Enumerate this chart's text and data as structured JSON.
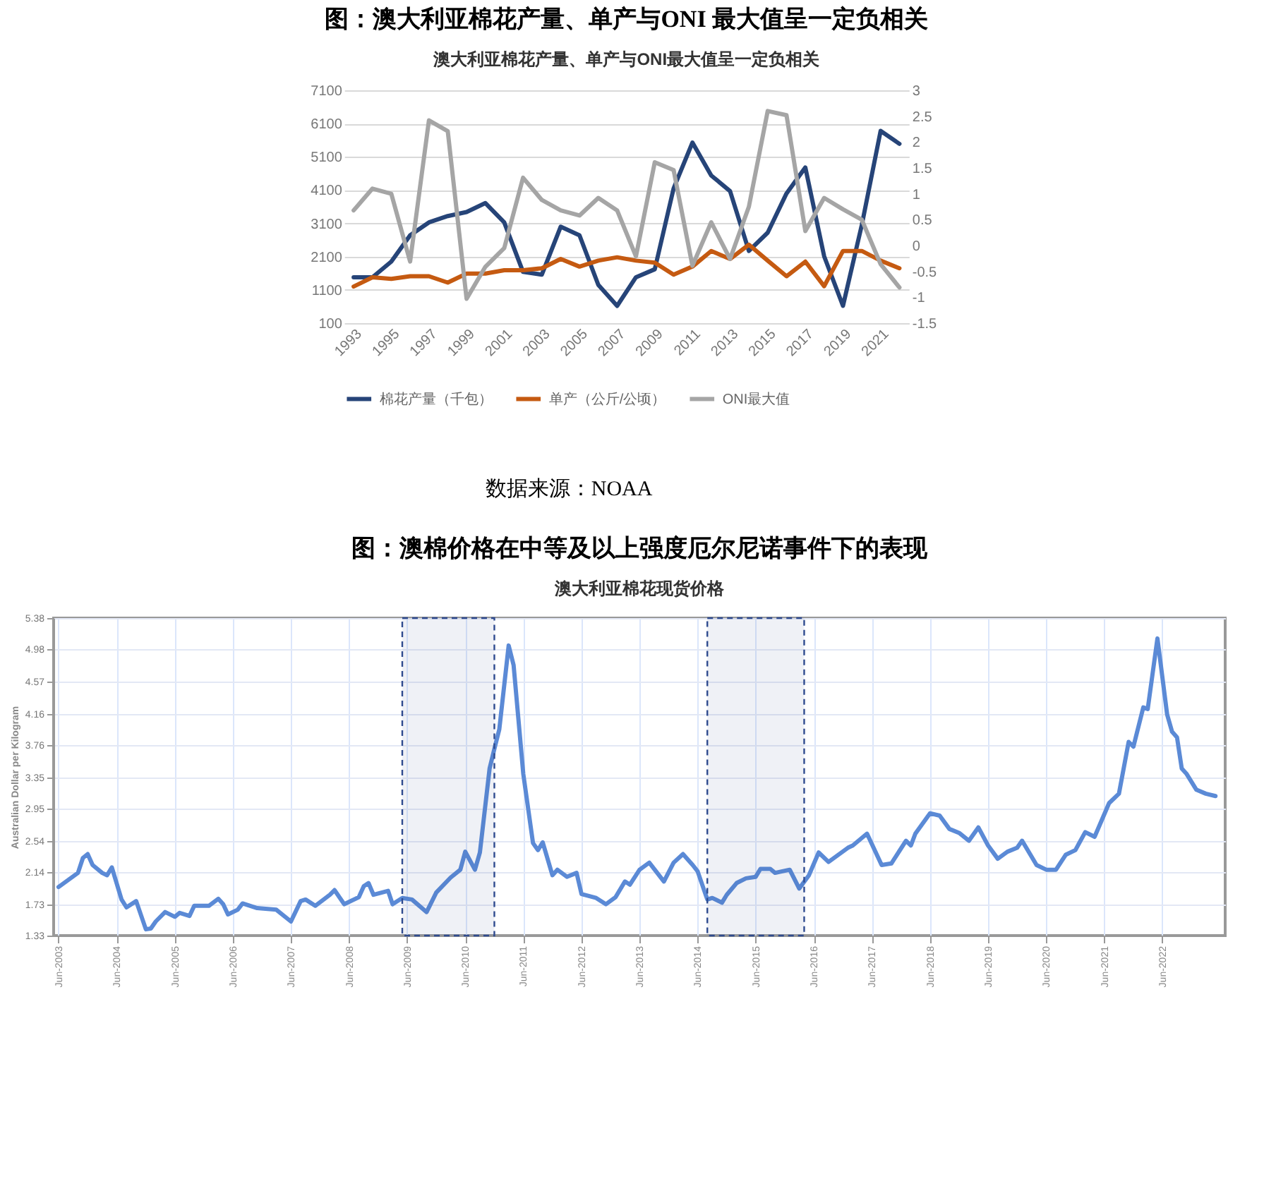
{
  "chart_data": [
    {
      "type": "line",
      "title": "图：澳大利亚棉花产量、单产与ONI 最大值呈一定负相关",
      "subtitle": "澳大利亚棉花产量、单产与ONI最大值呈一定负相关",
      "categories": [
        "1993",
        null,
        "1995",
        null,
        "1997",
        null,
        "1999",
        null,
        "2001",
        null,
        "2003",
        null,
        "2005",
        null,
        "2007",
        null,
        "2009",
        null,
        "2011",
        null,
        "2013",
        null,
        "2015",
        null,
        "2017",
        null,
        "2019",
        null,
        "2021",
        null
      ],
      "series": [
        {
          "name": "棉花产量（千包）",
          "color": "#264478",
          "values": [
            1480,
            1480,
            1950,
            2740,
            3130,
            3320,
            3440,
            3710,
            3130,
            1640,
            1560,
            3000,
            2740,
            1250,
            620,
            1480,
            1720,
            4150,
            5530,
            4540,
            4070,
            2270,
            2820,
            4000,
            4780,
            2110,
            620,
            3050,
            5880,
            5490
          ]
        },
        {
          "name": "单产（公斤/公顷）",
          "color": "#c55a11",
          "values": [
            1200,
            1480,
            1430,
            1510,
            1510,
            1320,
            1590,
            1590,
            1690,
            1690,
            1750,
            2030,
            1800,
            1980,
            2080,
            1980,
            1920,
            1560,
            1800,
            2270,
            2030,
            2460,
            1980,
            1510,
            1950,
            1210,
            2270,
            2270,
            1980,
            1750
          ]
        },
        {
          "name": "ONI最大值",
          "color": "#a5a5a5",
          "axis": "y2",
          "values": [
            0.68,
            1.1,
            1.0,
            -0.31,
            2.42,
            2.21,
            -1.03,
            -0.41,
            -0.05,
            1.31,
            0.88,
            0.68,
            0.58,
            0.92,
            0.68,
            -0.21,
            1.61,
            1.46,
            -0.39,
            0.45,
            -0.26,
            0.75,
            2.6,
            2.52,
            0.28,
            0.92,
            0.7,
            0.5,
            -0.36,
            -0.81
          ]
        }
      ],
      "ylim": [
        100,
        7100
      ],
      "yticks": [
        100,
        1100,
        2100,
        3100,
        4100,
        5100,
        6100,
        7100
      ],
      "y2lim": [
        -1.5,
        3
      ],
      "y2ticks": [
        -1.5,
        -1,
        -0.5,
        0,
        0.5,
        1,
        1.5,
        2,
        2.5,
        3
      ],
      "grid": "y",
      "legend": "bottom",
      "annotations": [
        "数据来源：NOAA"
      ]
    },
    {
      "type": "line",
      "title": "图：澳棉价格在中等及以上强度厄尔尼诺事件下的表现",
      "subtitle": "澳大利亚棉花现货价格",
      "ylabel": "Australian Dollar per Kilogram",
      "x": [
        "2003-06",
        "2003-08",
        "2003-10",
        "2003-11",
        "2003-12",
        "2004-01",
        "2004-03",
        "2004-04",
        "2004-05",
        "2004-07",
        "2004-08",
        "2004-10",
        "2004-12",
        "2005-01",
        "2005-02",
        "2005-04",
        "2005-06",
        "2005-07",
        "2005-09",
        "2005-10",
        "2006-01",
        "2006-03",
        "2006-04",
        "2006-05",
        "2006-07",
        "2006-08",
        "2006-11",
        "2007-03",
        "2007-06",
        "2007-08",
        "2007-09",
        "2007-11",
        "2008-02",
        "2008-03",
        "2008-05",
        "2008-08",
        "2008-09",
        "2008-10",
        "2008-11",
        "2009-02",
        "2009-03",
        "2009-05",
        "2009-07",
        "2009-10",
        "2009-12",
        "2010-03",
        "2010-05",
        "2010-06",
        "2010-08",
        "2010-09",
        "2010-11",
        "2010-12",
        "2011-01",
        "2011-03",
        "2011-04",
        "2011-06",
        "2011-08",
        "2011-09",
        "2011-10",
        "2011-12",
        "2012-01",
        "2012-03",
        "2012-05",
        "2012-06",
        "2012-09",
        "2012-11",
        "2013-01",
        "2013-03",
        "2013-04",
        "2013-06",
        "2013-08",
        "2013-11",
        "2014-01",
        "2014-03",
        "2014-05",
        "2014-06",
        "2014-08",
        "2014-09",
        "2014-11",
        "2014-12",
        "2015-02",
        "2015-04",
        "2015-06",
        "2015-07",
        "2015-09",
        "2015-10",
        "2016-01",
        "2016-03",
        "2016-05",
        "2016-07",
        "2016-09",
        "2017-01",
        "2017-02",
        "2017-05",
        "2017-08",
        "2017-10",
        "2018-01",
        "2018-02",
        "2018-03",
        "2018-06",
        "2018-08",
        "2018-10",
        "2018-12",
        "2019-02",
        "2019-04",
        "2019-06",
        "2019-08",
        "2019-10",
        "2019-12",
        "2020-01",
        "2020-04",
        "2020-06",
        "2020-08",
        "2020-10",
        "2020-12",
        "2021-02",
        "2021-04",
        "2021-07",
        "2021-09",
        "2021-11",
        "2021-12",
        "2022-02",
        "2022-03",
        "2022-05",
        "2022-07",
        "2022-08",
        "2022-09",
        "2022-10",
        "2022-11",
        "2023-01",
        "2023-03",
        "2023-05"
      ],
      "series": [
        {
          "color": "#5b8ad6",
          "values": [
            1.95,
            2.04,
            2.13,
            2.32,
            2.37,
            2.23,
            2.13,
            2.1,
            2.2,
            1.79,
            1.69,
            1.77,
            1.41,
            1.42,
            1.51,
            1.63,
            1.57,
            1.62,
            1.58,
            1.71,
            1.71,
            1.8,
            1.73,
            1.6,
            1.66,
            1.74,
            1.68,
            1.66,
            1.51,
            1.77,
            1.79,
            1.71,
            1.85,
            1.91,
            1.73,
            1.82,
            1.96,
            2.0,
            1.85,
            1.9,
            1.73,
            1.81,
            1.79,
            1.63,
            1.88,
            2.07,
            2.17,
            2.4,
            2.17,
            2.39,
            3.46,
            3.71,
            3.96,
            5.03,
            4.78,
            3.39,
            2.51,
            2.42,
            2.52,
            2.1,
            2.17,
            2.08,
            2.13,
            1.86,
            1.81,
            1.73,
            1.82,
            2.02,
            1.98,
            2.17,
            2.26,
            2.02,
            2.26,
            2.37,
            2.23,
            2.15,
            1.79,
            1.81,
            1.75,
            1.85,
            2.0,
            2.06,
            2.08,
            2.18,
            2.18,
            2.13,
            2.17,
            1.93,
            2.1,
            2.39,
            2.27,
            2.45,
            2.48,
            2.63,
            2.23,
            2.25,
            2.54,
            2.48,
            2.63,
            2.89,
            2.86,
            2.69,
            2.64,
            2.54,
            2.71,
            2.48,
            2.31,
            2.4,
            2.45,
            2.54,
            2.23,
            2.17,
            2.17,
            2.36,
            2.42,
            2.65,
            2.59,
            3.02,
            3.14,
            3.8,
            3.74,
            4.24,
            4.22,
            5.12,
            4.15,
            3.93,
            3.86,
            3.46,
            3.39,
            3.19,
            3.14,
            3.11
          ]
        }
      ],
      "xlim": [
        "2003-05",
        "2023-07"
      ],
      "xticks": [
        {
          "value": "2003-06",
          "label": "Jun-2003"
        },
        {
          "value": "2004-06",
          "label": "Jun-2004"
        },
        {
          "value": "2005-06",
          "label": "Jun-2005"
        },
        {
          "value": "2006-06",
          "label": "Jun-2006"
        },
        {
          "value": "2007-06",
          "label": "Jun-2007"
        },
        {
          "value": "2008-06",
          "label": "Jun-2008"
        },
        {
          "value": "2009-06",
          "label": "Jun-2009"
        },
        {
          "value": "2010-06",
          "label": "Jun-2010"
        },
        {
          "value": "2011-06",
          "label": "Jun-2011"
        },
        {
          "value": "2012-06",
          "label": "Jun-2012"
        },
        {
          "value": "2013-06",
          "label": "Jun-2013"
        },
        {
          "value": "2014-06",
          "label": "Jun-2014"
        },
        {
          "value": "2015-06",
          "label": "Jun-2015"
        },
        {
          "value": "2016-06",
          "label": "Jun-2016"
        },
        {
          "value": "2017-06",
          "label": "Jun-2017"
        },
        {
          "value": "2018-06",
          "label": "Jun-2018"
        },
        {
          "value": "2019-06",
          "label": "Jun-2019"
        },
        {
          "value": "2020-06",
          "label": "Jun-2020"
        },
        {
          "value": "2021-06",
          "label": "Jun-2021"
        },
        {
          "value": "2022-06",
          "label": "Jun-2022"
        }
      ],
      "ylim": [
        1.33,
        5.38
      ],
      "yticks": [
        1.33,
        1.73,
        2.14,
        2.54,
        2.95,
        3.35,
        3.76,
        4.16,
        4.57,
        4.98,
        5.38
      ],
      "grid": true,
      "bands": [
        {
          "axis": "x",
          "from": "2009-05",
          "to": "2010-12",
          "color": "#2f4b8f"
        },
        {
          "axis": "x",
          "from": "2014-08",
          "to": "2016-04",
          "color": "#2f4b8f"
        }
      ]
    }
  ]
}
